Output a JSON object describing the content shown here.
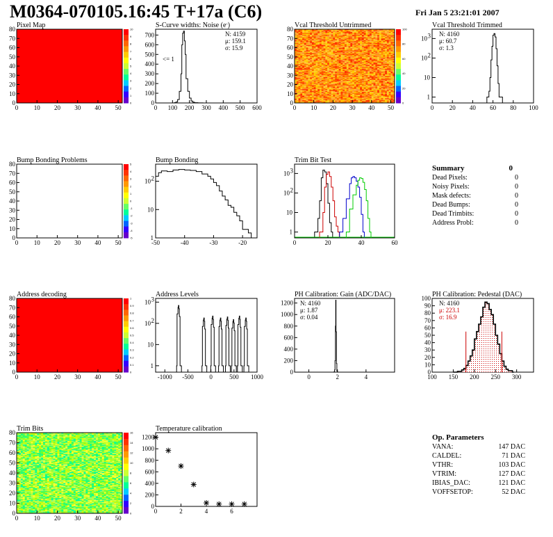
{
  "header": {
    "title": "M0364-070105.16:45 T+17a (C6)",
    "date": "Fri Jan  5 23:21:01 2007"
  },
  "colors": {
    "frame": "#000000",
    "flat_map": "#ff0000",
    "red_series": "#cc0000",
    "blue_series": "#0000cc",
    "green_series": "#00cc00"
  },
  "panels": {
    "pixel_map": {
      "title": "Pixel Map",
      "x_ticks": [
        "0",
        "10",
        "20",
        "30",
        "40",
        "50"
      ],
      "y_ticks": [
        "0",
        "10",
        "20",
        "30",
        "40",
        "50",
        "60",
        "70",
        "80"
      ],
      "z_ticks": [
        "10",
        "9",
        "8",
        "7",
        "6",
        "5",
        "4",
        "3",
        "2",
        "1",
        "0"
      ]
    },
    "scurve": {
      "title": "S-Curve widths: Noise (e",
      "title_sup": "-",
      "title_end": ")",
      "stats": [
        "N: 4159",
        "μ: 159.1",
        "σ: 15.9"
      ],
      "annotation": "<= 1",
      "x_ticks": [
        "0",
        "100",
        "200",
        "300",
        "400",
        "500",
        "600"
      ],
      "y_ticks": [
        "0",
        "100",
        "200",
        "300",
        "400",
        "500",
        "600",
        "700"
      ]
    },
    "vcal_untrimmed": {
      "title": "Vcal Threshold Untrimmed",
      "x_ticks": [
        "0",
        "10",
        "20",
        "30",
        "40",
        "50"
      ],
      "y_ticks": [
        "0",
        "10",
        "20",
        "30",
        "40",
        "50",
        "60",
        "70",
        "80"
      ],
      "z_ticks": [
        "100",
        "80",
        "60",
        "40",
        "20",
        "0"
      ]
    },
    "vcal_trimmed": {
      "title": "Vcal Threshold Trimmed",
      "stats": [
        "N: 4160",
        "μ: 60.7",
        "σ:  1.3"
      ],
      "x_ticks": [
        "0",
        "20",
        "40",
        "60",
        "80",
        "100"
      ],
      "y_tick_labels": [
        "1",
        "10",
        "10",
        "10"
      ],
      "y_tick_exps": [
        "",
        "",
        "2",
        "3"
      ]
    },
    "bump_problems": {
      "title": "Bump Bonding Problems",
      "x_ticks": [
        "0",
        "10",
        "20",
        "30",
        "40",
        "50"
      ],
      "y_ticks": [
        "0",
        "10",
        "20",
        "30",
        "40",
        "50",
        "60",
        "70",
        "80"
      ],
      "z_ticks": [
        "5",
        "4",
        "3",
        "2",
        "1",
        "0",
        "-1",
        "-2",
        "-3",
        "-4",
        "-5"
      ]
    },
    "bump_bonding": {
      "title": "Bump Bonding",
      "x_ticks": [
        "-50",
        "-40",
        "-30",
        "-20"
      ],
      "y_tick_labels": [
        "1",
        "10",
        "10"
      ],
      "y_tick_exps": [
        "",
        "",
        "2"
      ]
    },
    "trim_bit_test": {
      "title": "Trim Bit Test",
      "x_ticks": [
        "0",
        "20",
        "40",
        "60"
      ],
      "y_tick_labels": [
        "1",
        "10",
        "10",
        "10"
      ],
      "y_tick_exps": [
        "",
        "",
        "2",
        "3"
      ]
    },
    "summary": {
      "title": "Summary",
      "total": "0",
      "rows": [
        {
          "label": "Dead Pixels:",
          "value": "0"
        },
        {
          "label": "Noisy Pixels:",
          "value": "0"
        },
        {
          "label": "Mask defects:",
          "value": "0"
        },
        {
          "label": "Dead Bumps:",
          "value": "0"
        },
        {
          "label": "Dead Trimbits:",
          "value": "0"
        },
        {
          "label": "Address Probl:",
          "value": "0"
        }
      ]
    },
    "address_decoding": {
      "title": "Address decoding",
      "x_ticks": [
        "0",
        "10",
        "20",
        "30",
        "40",
        "50"
      ],
      "y_ticks": [
        "0",
        "10",
        "20",
        "30",
        "40",
        "50",
        "60",
        "70",
        "80"
      ],
      "z_ticks": [
        "1",
        "0.9",
        "0.8",
        "0.7",
        "0.6",
        "0.5",
        "0.4",
        "0.3",
        "0.2",
        "0.1",
        "0"
      ]
    },
    "address_levels": {
      "title": "Address Levels",
      "x_ticks": [
        "-1000",
        "-500",
        "0",
        "500",
        "1000"
      ],
      "y_tick_labels": [
        "1",
        "10",
        "10",
        "10"
      ],
      "y_tick_exps": [
        "",
        "",
        "2",
        "3"
      ]
    },
    "ph_gain": {
      "title": "PH Calibration: Gain (ADC/DAC)",
      "stats": [
        "N: 4160",
        "μ: 1.87",
        "σ: 0.04"
      ],
      "x_ticks": [
        "0",
        "2",
        "4"
      ],
      "y_ticks": [
        "0",
        "200",
        "400",
        "600",
        "800",
        "1000",
        "1200"
      ]
    },
    "ph_pedestal": {
      "title": "PH Calibration: Pedestal (DAC)",
      "stats": [
        "N: 4160",
        "μ: 223.1",
        "σ: 16.9"
      ],
      "x_ticks": [
        "100",
        "150",
        "200",
        "250",
        "300"
      ],
      "y_ticks": [
        "0",
        "10",
        "20",
        "30",
        "40",
        "50",
        "60",
        "70",
        "80",
        "90",
        "100"
      ]
    },
    "trim_bits": {
      "title": "Trim Bits",
      "x_ticks": [
        "0",
        "10",
        "20",
        "30",
        "40",
        "50"
      ],
      "y_ticks": [
        "0",
        "10",
        "20",
        "30",
        "40",
        "50",
        "60",
        "70",
        "80"
      ],
      "z_ticks": [
        "16",
        "14",
        "12",
        "10",
        "8",
        "6",
        "4",
        "2",
        "0"
      ]
    },
    "temperature": {
      "title": "Temperature calibration",
      "x_ticks": [
        "0",
        "2",
        "4",
        "6"
      ],
      "y_ticks": [
        "0",
        "200",
        "400",
        "600",
        "800",
        "1000",
        "1200"
      ]
    },
    "op_params": {
      "title": "Op. Parameters",
      "rows": [
        {
          "label": "VANA:",
          "value": "147 DAC"
        },
        {
          "label": "CALDEL:",
          "value": "71 DAC"
        },
        {
          "label": "VTHR:",
          "value": "103 DAC"
        },
        {
          "label": "VTRIM:",
          "value": "127 DAC"
        },
        {
          "label": "IBIAS_DAC:",
          "value": "121 DAC"
        },
        {
          "label": "VOFFSETOP:",
          "value": "52 DAC"
        }
      ]
    }
  },
  "chart_data": [
    {
      "type": "heatmap",
      "title": "Pixel Map",
      "xlim": [
        0,
        52
      ],
      "ylim": [
        0,
        80
      ],
      "zlim": [
        0,
        10
      ],
      "value_all": 10
    },
    {
      "type": "line",
      "title": "S-Curve widths: Noise (e-)",
      "xlim": [
        0,
        600
      ],
      "ylim": [
        0,
        760
      ],
      "x": [
        100,
        110,
        120,
        130,
        140,
        150,
        155,
        160,
        165,
        170,
        175,
        180,
        190,
        200,
        210,
        220,
        230,
        250,
        280
      ],
      "y": [
        0,
        3,
        10,
        35,
        120,
        300,
        600,
        720,
        740,
        640,
        500,
        250,
        120,
        50,
        20,
        8,
        3,
        1,
        0
      ]
    },
    {
      "type": "heatmap",
      "title": "Vcal Threshold Untrimmed",
      "xlim": [
        0,
        52
      ],
      "ylim": [
        0,
        80
      ],
      "zlim": [
        0,
        100
      ]
    },
    {
      "type": "line",
      "title": "Vcal Threshold Trimmed",
      "log_y": true,
      "xlim": [
        0,
        100
      ],
      "ylim": [
        0.5,
        3000
      ],
      "x": [
        54,
        56,
        57,
        58,
        59,
        60,
        61,
        62,
        63,
        64,
        65,
        66,
        68
      ],
      "y": [
        1,
        2,
        10,
        80,
        400,
        1500,
        1800,
        1200,
        300,
        40,
        5,
        1,
        1
      ]
    },
    {
      "type": "heatmap",
      "title": "Bump Bonding Problems",
      "xlim": [
        0,
        52
      ],
      "ylim": [
        0,
        80
      ],
      "zlim": [
        -5,
        5
      ],
      "value_all": 0
    },
    {
      "type": "line",
      "title": "Bump Bonding",
      "log_y": true,
      "xlim": [
        -50,
        -15
      ],
      "ylim": [
        1,
        400
      ],
      "x": [
        -50,
        -49,
        -48,
        -46,
        -44,
        -42,
        -40,
        -38,
        -36,
        -34,
        -32,
        -31,
        -30,
        -29,
        -28,
        -27,
        -26,
        -25,
        -24,
        -23,
        -22,
        -21,
        -20,
        -19,
        -18,
        -17
      ],
      "y": [
        150,
        200,
        230,
        220,
        250,
        260,
        250,
        240,
        220,
        180,
        150,
        120,
        90,
        70,
        45,
        30,
        22,
        14,
        12,
        8,
        6,
        4,
        2,
        2,
        1.5,
        1
      ]
    },
    {
      "type": "line",
      "title": "Trim Bit Test",
      "log_y": true,
      "xlim": [
        0,
        60
      ],
      "ylim": [
        0.5,
        3000
      ],
      "series": [
        {
          "color": "#000000",
          "x": [
            12,
            14,
            15,
            16,
            17,
            18,
            19,
            20,
            21,
            22
          ],
          "y": [
            1,
            5,
            40,
            600,
            1500,
            1200,
            300,
            30,
            3,
            1
          ]
        },
        {
          "color": "#cc0000",
          "x": [
            15,
            17,
            18,
            19,
            20,
            21,
            22,
            23,
            24,
            25,
            26
          ],
          "y": [
            1,
            10,
            200,
            900,
            1200,
            700,
            200,
            40,
            6,
            2,
            1
          ]
        },
        {
          "color": "#0000cc",
          "x": [
            27,
            29,
            31,
            33,
            34,
            35,
            36,
            37,
            38,
            39,
            40,
            41
          ],
          "y": [
            1,
            5,
            50,
            300,
            600,
            700,
            600,
            400,
            200,
            60,
            8,
            1
          ]
        },
        {
          "color": "#00cc00",
          "x": [
            31,
            33,
            35,
            37,
            38,
            39,
            40,
            41,
            42,
            43,
            44,
            45
          ],
          "y": [
            1,
            15,
            80,
            250,
            450,
            600,
            550,
            350,
            150,
            40,
            5,
            1
          ]
        }
      ]
    },
    {
      "type": "heatmap",
      "title": "Address decoding",
      "xlim": [
        0,
        52
      ],
      "ylim": [
        0,
        80
      ],
      "zlim": [
        0,
        1
      ],
      "value_all": 1
    },
    {
      "type": "line",
      "title": "Address Levels",
      "log_y": true,
      "xlim": [
        -1200,
        1000
      ],
      "ylim": [
        0.5,
        1500
      ],
      "peaks": [
        -700,
        -150,
        40,
        210,
        360,
        490,
        620,
        760
      ],
      "peak_heights": [
        700,
        180,
        220,
        180,
        200,
        150,
        220,
        180
      ]
    },
    {
      "type": "line",
      "title": "PH Calibration: Gain (ADC/DAC)",
      "xlim": [
        -1,
        6
      ],
      "ylim": [
        0,
        1280
      ],
      "x": [
        1.7,
        1.75,
        1.8,
        1.83,
        1.86,
        1.88,
        1.9,
        1.93,
        1.96,
        2.0
      ],
      "y": [
        0,
        5,
        40,
        200,
        800,
        1250,
        700,
        150,
        20,
        0
      ]
    },
    {
      "type": "line",
      "title": "PH Calibration: Pedestal (DAC)",
      "xlim": [
        100,
        340
      ],
      "ylim": [
        0,
        100
      ],
      "x": [
        150,
        160,
        170,
        175,
        180,
        185,
        190,
        195,
        200,
        205,
        210,
        215,
        220,
        225,
        230,
        235,
        240,
        245,
        250,
        255,
        260,
        265,
        270,
        275,
        280,
        290
      ],
      "y": [
        0,
        1,
        3,
        5,
        9,
        15,
        22,
        30,
        45,
        55,
        65,
        75,
        88,
        95,
        93,
        85,
        78,
        65,
        50,
        38,
        25,
        15,
        8,
        4,
        2,
        0
      ],
      "fit_range": [
        180,
        265
      ]
    },
    {
      "type": "heatmap",
      "title": "Trim Bits",
      "xlim": [
        0,
        52
      ],
      "ylim": [
        0,
        80
      ],
      "zlim": [
        0,
        16
      ]
    },
    {
      "type": "scatter",
      "title": "Temperature calibration",
      "xlim": [
        0,
        8
      ],
      "ylim": [
        0,
        1280
      ],
      "x": [
        0,
        1,
        2,
        3,
        4,
        5,
        6,
        7
      ],
      "y": [
        1200,
        970,
        700,
        380,
        60,
        40,
        40,
        40
      ]
    }
  ]
}
